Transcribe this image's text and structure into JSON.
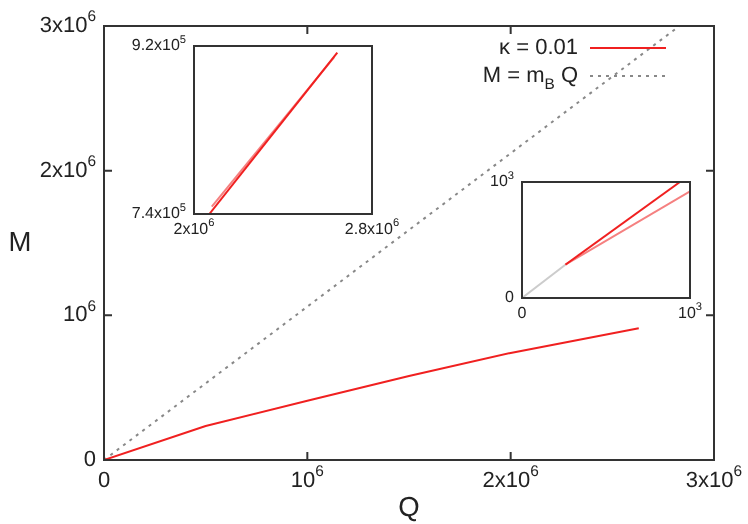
{
  "chart_data": [
    {
      "type": "line",
      "xlabel": "Q",
      "ylabel": "M",
      "legend": "top right",
      "marker": "none",
      "grid": false,
      "xlim": [
        0,
        3000000
      ],
      "ylim": [
        0,
        3000000
      ],
      "xticks": [
        0,
        {
          "value": 1000000,
          "label": "10$^{6}$"
        },
        {
          "value": 2000000,
          "label": "2x10$^{6}$"
        },
        {
          "value": 3000000,
          "label": "3x10$^{6}$"
        }
      ],
      "yticks": [
        0,
        {
          "value": 1000000,
          "label": "10$^{6}$"
        },
        {
          "value": 2000000,
          "label": "2x10$^{6}$"
        },
        {
          "value": 3000000,
          "label": "3x10$^{6}$"
        }
      ],
      "series": [
        {
          "name": "κ = 0.01",
          "color": "#f02020",
          "line_style": "solid",
          "x": [
            0,
            500000,
            1000000,
            1500000,
            2000000,
            2630000
          ],
          "values": [
            0,
            235000,
            410000,
            580000,
            740000,
            910000
          ]
        },
        {
          "name": "M = m$_{B}$ Q",
          "color": "#888888",
          "line_style": "dotted",
          "x": [
            0,
            2830000
          ],
          "values": [
            0,
            3000000
          ]
        }
      ]
    },
    {
      "type": "line",
      "marker": "none",
      "grid": false,
      "xlim": [
        2000000,
        2800000
      ],
      "ylim": [
        740000,
        920000
      ],
      "xticks": [
        {
          "value": 2000000,
          "label": "2x10$^{6}$"
        },
        {
          "value": 2800000,
          "label": "2.8x10$^{6}$"
        }
      ],
      "yticks": [
        {
          "value": 740000,
          "label": "7.4x10$^{5}$"
        },
        {
          "value": 920000,
          "label": "9.2x10$^{5}$"
        }
      ],
      "series": [
        {
          "color": "#f02020",
          "line_style": "solid",
          "x": [
            2069000,
            2644000
          ],
          "values": [
            740000,
            913000
          ]
        },
        {
          "color": "#f58080",
          "line_style": "solid",
          "x": [
            2080000,
            2630000
          ],
          "values": [
            748000,
            908000
          ]
        }
      ]
    },
    {
      "type": "line",
      "marker": "none",
      "grid": false,
      "xlim": [
        0,
        1000
      ],
      "ylim": [
        0,
        1000
      ],
      "xticks": [
        0,
        {
          "value": 1000,
          "label": "10$^{3}$"
        }
      ],
      "yticks": [
        0,
        {
          "value": 1000,
          "label": "10$^{3}$"
        }
      ],
      "series": [
        {
          "color": "#cccccc",
          "line_style": "solid",
          "x": [
            0,
            258
          ],
          "values": [
            0,
            287
          ]
        },
        {
          "color": "#f02020",
          "line_style": "solid",
          "x": [
            258,
            940
          ],
          "values": [
            287,
            1000
          ]
        },
        {
          "color": "#f58080",
          "line_style": "solid",
          "x": [
            258,
            1000
          ],
          "values": [
            287,
            920
          ]
        }
      ]
    }
  ]
}
